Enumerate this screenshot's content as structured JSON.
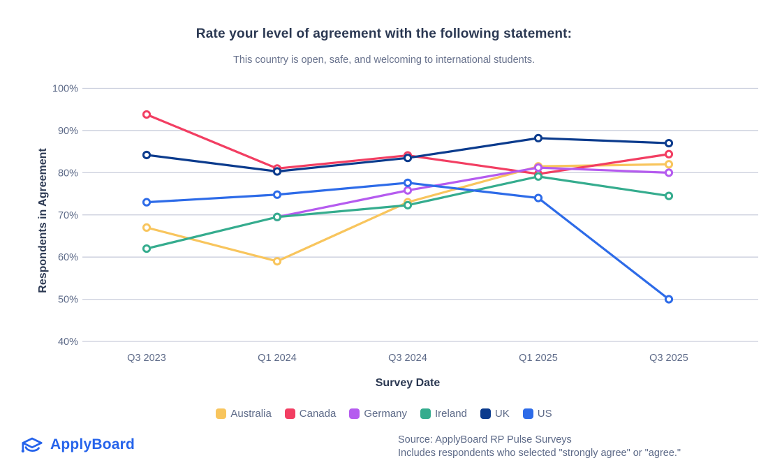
{
  "header": {
    "title": "Rate your level of agreement with the following statement:",
    "subtitle": "This country is open, safe, and welcoming to international students."
  },
  "chart_data": {
    "type": "line",
    "title": "Rate your level of agreement with the following statement:",
    "subtitle": "This country is open, safe, and welcoming to international students.",
    "xlabel": "Survey Date",
    "ylabel": "Respondents in Agreement",
    "categories": [
      "Q3 2023",
      "Q1 2024",
      "Q3 2024",
      "Q1 2025",
      "Q3 2025"
    ],
    "ytick_labels": [
      "100%",
      "90%",
      "80%",
      "70%",
      "60%",
      "50%",
      "40%"
    ],
    "ytick_values": [
      100,
      90,
      80,
      70,
      60,
      50,
      40
    ],
    "ylim": [
      40,
      100
    ],
    "grid": "horizontal",
    "legend_position": "bottom",
    "marker_style": "open-circle",
    "series": [
      {
        "name": "Australia",
        "color": "#F8C55D",
        "values": [
          67,
          59,
          73,
          81.5,
          82
        ]
      },
      {
        "name": "Canada",
        "color": "#F23E62",
        "values": [
          93.8,
          81,
          84.1,
          79.7,
          84.4
        ]
      },
      {
        "name": "Germany",
        "color": "#B55BEF",
        "values": [
          null,
          69.5,
          75.8,
          81.2,
          80
        ]
      },
      {
        "name": "Ireland",
        "color": "#35AC8E",
        "values": [
          62,
          69.5,
          72.3,
          79.1,
          74.5
        ]
      },
      {
        "name": "UK",
        "color": "#0B3B8D",
        "values": [
          84.2,
          80.3,
          83.5,
          88.2,
          87
        ]
      },
      {
        "name": "US",
        "color": "#2D6BE8",
        "values": [
          73,
          74.8,
          77.6,
          74,
          50
        ]
      }
    ],
    "grid_color": "#C9CDDC",
    "tick_color": "#5d6a88"
  },
  "footer": {
    "logo_text": "ApplyBoard",
    "logo_color": "#2563EB",
    "source_line1": "Source: ApplyBoard RP Pulse Surveys",
    "source_line2": "Includes respondents who selected \"strongly agree\" or \"agree.\""
  }
}
